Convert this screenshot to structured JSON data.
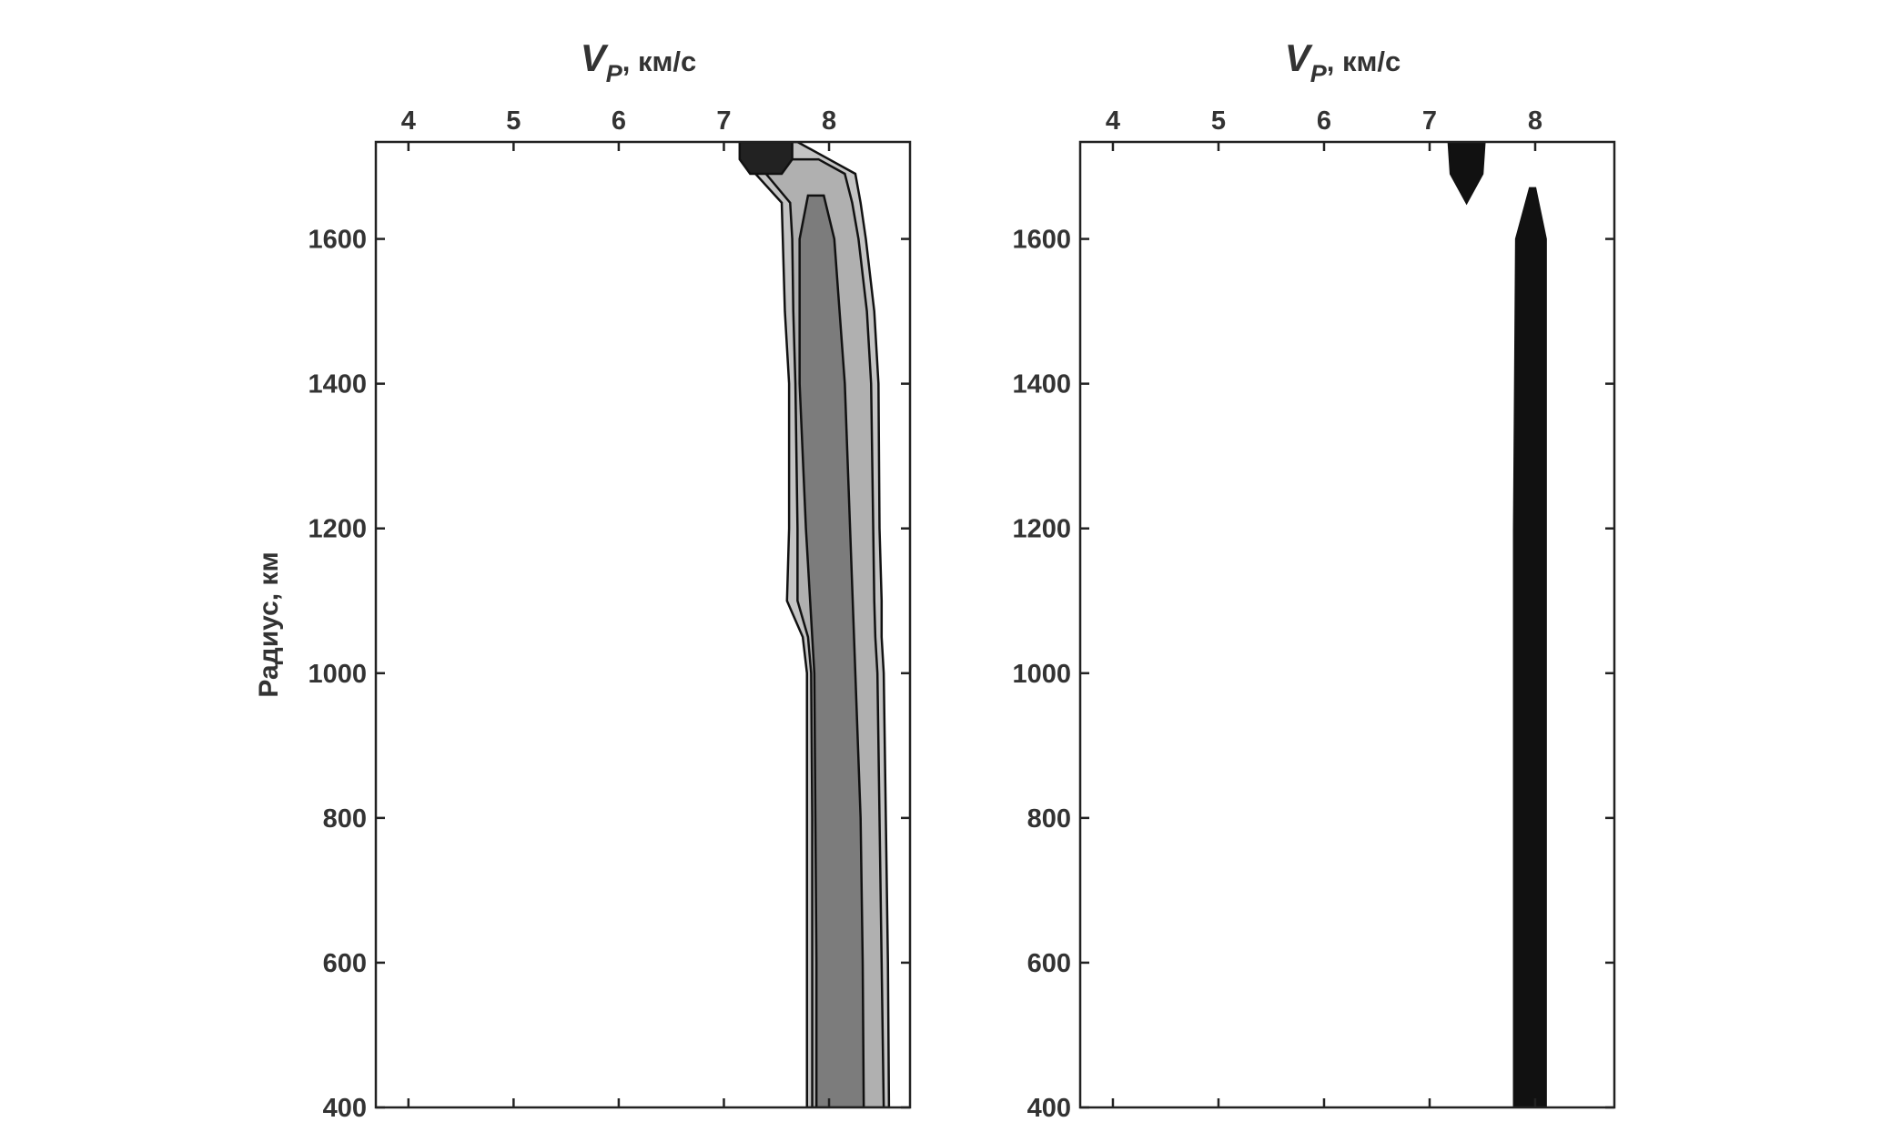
{
  "chart_data": [
    {
      "type": "band",
      "title": {
        "main": "V",
        "sub": "P",
        "rest": ", км/с"
      },
      "ylabel": "Радиус, км",
      "xlim": [
        3.69,
        8.77
      ],
      "xticks": [
        4,
        5,
        6,
        7,
        8
      ],
      "ylim": [
        400,
        1734
      ],
      "yticks": [
        400,
        600,
        800,
        1000,
        1200,
        1400,
        1600
      ],
      "series": [
        {
          "color": "#c4c4c4",
          "y": [
            400,
            600,
            800,
            1000,
            1050,
            1100,
            1200,
            1400,
            1500,
            1600,
            1650,
            1690,
            1710,
            1734
          ],
          "lower": [
            7.79,
            7.79,
            7.79,
            7.79,
            7.75,
            7.6,
            7.62,
            7.62,
            7.58,
            7.56,
            7.55,
            7.3,
            7.2,
            7.2
          ],
          "upper": [
            8.57,
            8.56,
            8.54,
            8.52,
            8.5,
            8.5,
            8.48,
            8.47,
            8.43,
            8.35,
            8.3,
            8.25,
            8.0,
            7.7
          ]
        },
        {
          "color": "#b0b0b0",
          "y": [
            400,
            600,
            800,
            1000,
            1050,
            1100,
            1200,
            1400,
            1500,
            1600,
            1650,
            1690,
            1710
          ],
          "lower": [
            7.84,
            7.84,
            7.84,
            7.83,
            7.8,
            7.7,
            7.7,
            7.68,
            7.66,
            7.65,
            7.63,
            7.4,
            7.3
          ],
          "upper": [
            8.52,
            8.5,
            8.48,
            8.46,
            8.44,
            8.43,
            8.42,
            8.4,
            8.36,
            8.28,
            8.22,
            8.15,
            7.9
          ]
        },
        {
          "color": "#7c7c7c",
          "y": [
            400,
            600,
            800,
            1000,
            1200,
            1400,
            1600,
            1660
          ],
          "lower": [
            7.88,
            7.88,
            7.87,
            7.86,
            7.78,
            7.72,
            7.72,
            7.8
          ],
          "upper": [
            8.33,
            8.32,
            8.3,
            8.25,
            8.2,
            8.15,
            8.05,
            7.95
          ]
        },
        {
          "color": "#222222",
          "y": [
            1690,
            1710,
            1734
          ],
          "lower": [
            7.25,
            7.15,
            7.15
          ],
          "upper": [
            7.55,
            7.65,
            7.65
          ]
        }
      ]
    },
    {
      "type": "band",
      "title": {
        "main": "V",
        "sub": "P",
        "rest": ", км/с"
      },
      "xlim": [
        3.69,
        8.75
      ],
      "xticks": [
        4,
        5,
        6,
        7,
        8
      ],
      "ylim": [
        400,
        1734
      ],
      "yticks": [
        400,
        600,
        800,
        1000,
        1200,
        1400,
        1600
      ],
      "series": [
        {
          "color": "#111111",
          "y": [
            400,
            1200,
            1600,
            1670
          ],
          "lower": [
            7.8,
            7.8,
            7.82,
            7.95
          ],
          "upper": [
            8.1,
            8.1,
            8.1,
            8.0
          ]
        },
        {
          "color": "#111111",
          "y": [
            1650,
            1690,
            1734
          ],
          "lower": [
            7.35,
            7.2,
            7.18
          ],
          "upper": [
            7.35,
            7.5,
            7.52
          ]
        }
      ]
    }
  ]
}
